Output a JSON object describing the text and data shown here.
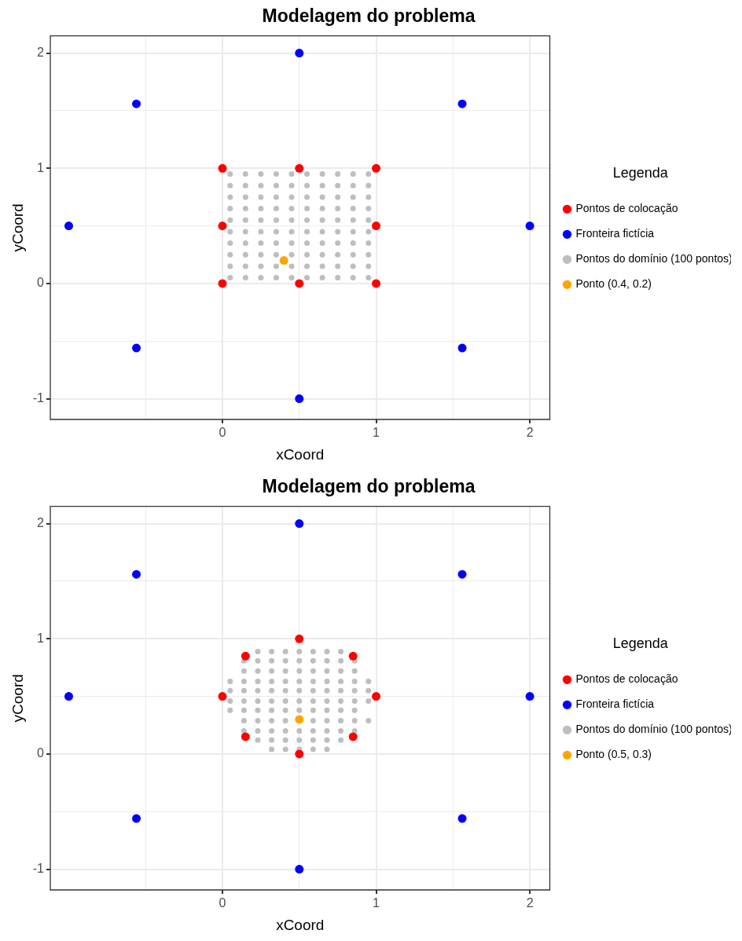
{
  "chart_data": [
    {
      "type": "scatter",
      "title": "Modelagem do problema",
      "xlabel": "xCoord",
      "ylabel": "yCoord",
      "legend_title": "Legenda",
      "legend": "right",
      "grid": true,
      "marker": "circle",
      "xlim": [
        -1.12,
        2.13
      ],
      "ylim": [
        -1.18,
        2.15
      ],
      "xticks": [
        {
          "value": -0.5,
          "label": null
        },
        0,
        {
          "value": 0.5,
          "label": null
        },
        1,
        {
          "value": 1.5,
          "label": null
        },
        2
      ],
      "yticks": [
        -1,
        {
          "value": -0.5,
          "label": null
        },
        0,
        {
          "value": 0.5,
          "label": null
        },
        1,
        {
          "value": 1.5,
          "label": null
        },
        2
      ],
      "series": [
        {
          "name": "Pontos de colocação",
          "color": "#ff0000",
          "x": [
            0,
            0.5,
            1,
            0,
            1,
            0,
            0.5,
            1
          ],
          "values": [
            0,
            0,
            0,
            0.5,
            0.5,
            1,
            1,
            1
          ]
        },
        {
          "name": "Fronteira fictícia",
          "color": "#0000ff",
          "x": [
            0.5,
            1.56,
            2,
            1.56,
            0.5,
            -0.56,
            -1,
            -0.56
          ],
          "values": [
            2,
            1.56,
            0.5,
            -0.56,
            -1,
            -0.56,
            0.5,
            1.56
          ]
        },
        {
          "name": "Pontos do domínio (100 pontos)",
          "color": "#bebebe",
          "x": [
            0.05,
            0.15,
            0.25,
            0.35,
            0.45,
            0.55,
            0.65,
            0.75,
            0.85,
            0.95,
            0.05,
            0.15,
            0.25,
            0.35,
            0.45,
            0.55,
            0.65,
            0.75,
            0.85,
            0.95,
            0.05,
            0.15,
            0.25,
            0.35,
            0.45,
            0.55,
            0.65,
            0.75,
            0.85,
            0.95,
            0.05,
            0.15,
            0.25,
            0.35,
            0.45,
            0.55,
            0.65,
            0.75,
            0.85,
            0.95,
            0.05,
            0.15,
            0.25,
            0.35,
            0.45,
            0.55,
            0.65,
            0.75,
            0.85,
            0.95,
            0.05,
            0.15,
            0.25,
            0.35,
            0.45,
            0.55,
            0.65,
            0.75,
            0.85,
            0.95,
            0.05,
            0.15,
            0.25,
            0.35,
            0.45,
            0.55,
            0.65,
            0.75,
            0.85,
            0.95,
            0.05,
            0.15,
            0.25,
            0.35,
            0.45,
            0.55,
            0.65,
            0.75,
            0.85,
            0.95,
            0.05,
            0.15,
            0.25,
            0.35,
            0.45,
            0.55,
            0.65,
            0.75,
            0.85,
            0.95,
            0.05,
            0.15,
            0.25,
            0.35,
            0.45,
            0.55,
            0.65,
            0.75,
            0.85,
            0.95
          ],
          "values": [
            0.05,
            0.05,
            0.05,
            0.05,
            0.05,
            0.05,
            0.05,
            0.05,
            0.05,
            0.05,
            0.15,
            0.15,
            0.15,
            0.15,
            0.15,
            0.15,
            0.15,
            0.15,
            0.15,
            0.15,
            0.25,
            0.25,
            0.25,
            0.25,
            0.25,
            0.25,
            0.25,
            0.25,
            0.25,
            0.25,
            0.35,
            0.35,
            0.35,
            0.35,
            0.35,
            0.35,
            0.35,
            0.35,
            0.35,
            0.35,
            0.45,
            0.45,
            0.45,
            0.45,
            0.45,
            0.45,
            0.45,
            0.45,
            0.45,
            0.45,
            0.55,
            0.55,
            0.55,
            0.55,
            0.55,
            0.55,
            0.55,
            0.55,
            0.55,
            0.55,
            0.65,
            0.65,
            0.65,
            0.65,
            0.65,
            0.65,
            0.65,
            0.65,
            0.65,
            0.65,
            0.75,
            0.75,
            0.75,
            0.75,
            0.75,
            0.75,
            0.75,
            0.75,
            0.75,
            0.75,
            0.85,
            0.85,
            0.85,
            0.85,
            0.85,
            0.85,
            0.85,
            0.85,
            0.85,
            0.85,
            0.95,
            0.95,
            0.95,
            0.95,
            0.95,
            0.95,
            0.95,
            0.95,
            0.95,
            0.95
          ]
        },
        {
          "name": "Ponto (0.4, 0.2)",
          "color": "#ffa500",
          "x": [
            0.4
          ],
          "values": [
            0.2
          ]
        }
      ]
    },
    {
      "type": "scatter",
      "title": "Modelagem do problema",
      "xlabel": "xCoord",
      "ylabel": "yCoord",
      "legend_title": "Legenda",
      "legend": "right",
      "grid": true,
      "marker": "circle",
      "xlim": [
        -1.12,
        2.13
      ],
      "ylim": [
        -1.18,
        2.15
      ],
      "xticks": [
        {
          "value": -0.5,
          "label": null
        },
        0,
        {
          "value": 0.5,
          "label": null
        },
        1,
        {
          "value": 1.5,
          "label": null
        },
        2
      ],
      "yticks": [
        -1,
        {
          "value": -0.5,
          "label": null
        },
        0,
        {
          "value": 0.5,
          "label": null
        },
        1,
        {
          "value": 1.5,
          "label": null
        },
        2
      ],
      "series": [
        {
          "name": "Pontos de colocação",
          "color": "#ff0000",
          "x": [
            1,
            0.85,
            0.5,
            0.15,
            0,
            0.15,
            0.5,
            0.85
          ],
          "values": [
            0.5,
            0.85,
            1,
            0.85,
            0.5,
            0.15,
            0,
            0.15
          ]
        },
        {
          "name": "Fronteira fictícia",
          "color": "#0000ff",
          "x": [
            0.5,
            1.56,
            2,
            1.56,
            0.5,
            -0.56,
            -1,
            -0.56
          ],
          "values": [
            2,
            1.56,
            0.5,
            -0.56,
            -1,
            -0.56,
            0.5,
            1.56
          ]
        },
        {
          "name": "Pontos do domínio (100 pontos)",
          "color": "#bebebe",
          "x": [
            0.23,
            0.32,
            0.41,
            0.5,
            0.59,
            0.68,
            0.77,
            0.14,
            0.23,
            0.32,
            0.41,
            0.5,
            0.59,
            0.68,
            0.77,
            0.86,
            0.14,
            0.23,
            0.32,
            0.41,
            0.5,
            0.59,
            0.68,
            0.77,
            0.86,
            0.05,
            0.14,
            0.23,
            0.32,
            0.41,
            0.5,
            0.59,
            0.68,
            0.77,
            0.86,
            0.95,
            0.05,
            0.14,
            0.23,
            0.32,
            0.41,
            0.5,
            0.59,
            0.68,
            0.77,
            0.86,
            0.95,
            0.05,
            0.14,
            0.23,
            0.32,
            0.41,
            0.5,
            0.59,
            0.68,
            0.77,
            0.86,
            0.95,
            0.05,
            0.14,
            0.23,
            0.32,
            0.41,
            0.5,
            0.59,
            0.68,
            0.77,
            0.86,
            0.14,
            0.23,
            0.32,
            0.41,
            0.59,
            0.68,
            0.77,
            0.86,
            0.95,
            0.14,
            0.23,
            0.32,
            0.41,
            0.5,
            0.59,
            0.68,
            0.77,
            0.86,
            0.23,
            0.32,
            0.41,
            0.5,
            0.59,
            0.68,
            0.77,
            0.32,
            0.41,
            0.5,
            0.59,
            0.68
          ],
          "values": [
            0.89,
            0.89,
            0.89,
            0.89,
            0.89,
            0.89,
            0.89,
            0.81,
            0.81,
            0.81,
            0.81,
            0.81,
            0.81,
            0.81,
            0.81,
            0.81,
            0.72,
            0.72,
            0.72,
            0.72,
            0.72,
            0.72,
            0.72,
            0.72,
            0.72,
            0.63,
            0.63,
            0.63,
            0.63,
            0.63,
            0.63,
            0.63,
            0.63,
            0.63,
            0.63,
            0.63,
            0.55,
            0.55,
            0.55,
            0.55,
            0.55,
            0.55,
            0.55,
            0.55,
            0.55,
            0.55,
            0.55,
            0.46,
            0.46,
            0.46,
            0.46,
            0.46,
            0.46,
            0.46,
            0.46,
            0.46,
            0.46,
            0.46,
            0.38,
            0.38,
            0.38,
            0.38,
            0.38,
            0.38,
            0.38,
            0.38,
            0.38,
            0.38,
            0.29,
            0.29,
            0.29,
            0.29,
            0.29,
            0.29,
            0.29,
            0.29,
            0.29,
            0.2,
            0.2,
            0.2,
            0.2,
            0.2,
            0.2,
            0.2,
            0.2,
            0.2,
            0.12,
            0.12,
            0.12,
            0.12,
            0.12,
            0.12,
            0.12,
            0.04,
            0.04,
            0.04,
            0.04,
            0.04
          ]
        },
        {
          "name": "Ponto (0.5, 0.3)",
          "color": "#ffa500",
          "x": [
            0.5
          ],
          "values": [
            0.3
          ]
        }
      ]
    }
  ]
}
